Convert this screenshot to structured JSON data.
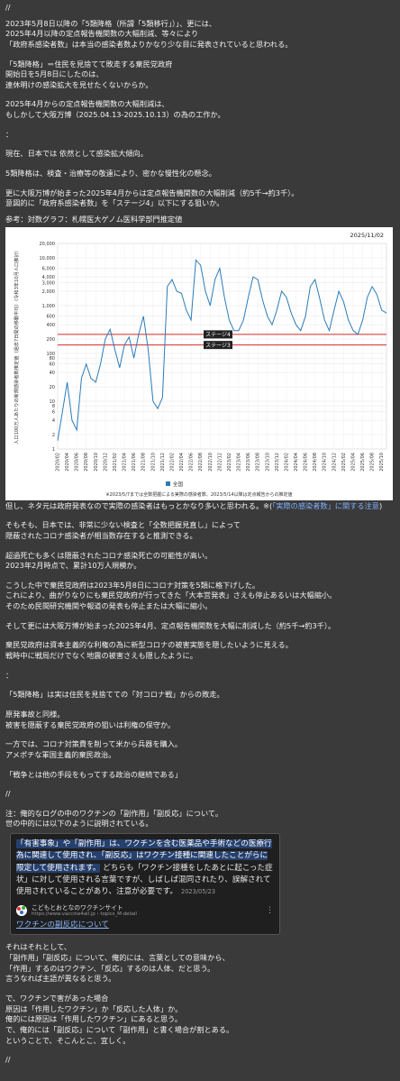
{
  "top": {
    "sep": "//",
    "para1": [
      "2023年5月8日以降の「5類降格（所謂「5類移行」）」、更には、",
      "2025年4月以降の定点報告機関数の大幅削減、等々により",
      "「政府系感染者数」は本当の感染者数よりかなり少な目に発表されていると思われる。"
    ],
    "para2": [
      "「5類降格」＝住民を見捨てて敗走する棄民党政府",
      "開始日を5月8日にしたのは、",
      "連休明けの感染拡大を見せたくないからか。"
    ],
    "para3": [
      "2025年4月からの定点報告機関数の大幅削減は、",
      "もしかして大阪万博（2025.04.13-2025.10.13）の為の工作か。"
    ],
    "colon1": "：",
    "para4": [
      "現在、日本では 依然として感染拡大傾向。"
    ],
    "para5": [
      "5類降格は、検査・治療等の敬遠により、密かな慢性化の懸念。"
    ],
    "para6": [
      "更に大阪万博が始まった2025年4月からは定点報告機関数の大幅削減（約5千→約3千）。",
      "意図的に「政府系感染者数」を「ステージ4」以下にする狙いか。"
    ],
    "ref": "参考：対数グラフ：札幌医大ゲノム医科学部門推定値"
  },
  "chart_data": {
    "type": "line",
    "title": "",
    "date_label": "2025/11/02",
    "ylabel": "人口100万人あたりの新規感染者数推定値（過去7日間の移動平均）（令和3年10月人口推計）",
    "xlabel": "",
    "yscale": "log",
    "ylim": [
      1,
      20000
    ],
    "yticks": [
      "1",
      "2",
      "4",
      "6",
      "8",
      "10",
      "20",
      "40",
      "60",
      "80",
      "100",
      "200",
      "400",
      "600",
      "1,000",
      "2,000",
      "3,000",
      "4,000",
      "6,000",
      "10,000",
      "20,000"
    ],
    "xticks": [
      "2020/02",
      "2020/04",
      "2020/06",
      "2020/08",
      "2020/10",
      "2020/12",
      "2021/02",
      "2021/04",
      "2021/06",
      "2021/08",
      "2021/10",
      "2021/12",
      "2022/02",
      "2022/04",
      "2022/06",
      "2022/08",
      "2022/10",
      "2022/12",
      "2023/02",
      "2023/04",
      "2023/06",
      "2023/08",
      "2023/10",
      "2023/12",
      "2024/02",
      "2024/04",
      "2024/06",
      "2024/08",
      "2024/10",
      "2024/12",
      "2025/02",
      "2025/04",
      "2025/06",
      "2025/08",
      "2025/10"
    ],
    "series": [
      {
        "name": "全国",
        "color": "#2b7bb9",
        "x": [
          "2020/02",
          "2020/03",
          "2020/04",
          "2020/05",
          "2020/06",
          "2020/07",
          "2020/08",
          "2020/09",
          "2020/10",
          "2020/11",
          "2020/12",
          "2021/01",
          "2021/02",
          "2021/03",
          "2021/04",
          "2021/05",
          "2021/06",
          "2021/07",
          "2021/08",
          "2021/09",
          "2021/10",
          "2021/11",
          "2021/12",
          "2022/01",
          "2022/02",
          "2022/03",
          "2022/04",
          "2022/05",
          "2022/06",
          "2022/07",
          "2022/08",
          "2022/09",
          "2022/10",
          "2022/11",
          "2022/12",
          "2023/01",
          "2023/02",
          "2023/03",
          "2023/04",
          "2023/05",
          "2023/06",
          "2023/07",
          "2023/08",
          "2023/09",
          "2023/10",
          "2023/11",
          "2023/12",
          "2024/01",
          "2024/02",
          "2024/03",
          "2024/04",
          "2024/05",
          "2024/06",
          "2024/07",
          "2024/08",
          "2024/09",
          "2024/10",
          "2024/11",
          "2024/12",
          "2025/01",
          "2025/02",
          "2025/03",
          "2025/04",
          "2025/05",
          "2025/06",
          "2025/07",
          "2025/08",
          "2025/09",
          "2025/10",
          "2025/11"
        ],
        "values": [
          1.5,
          6,
          25,
          4,
          2.5,
          30,
          60,
          30,
          25,
          60,
          200,
          320,
          120,
          50,
          150,
          220,
          80,
          250,
          600,
          120,
          10,
          7,
          12,
          2500,
          3500,
          2000,
          1800,
          800,
          500,
          9000,
          7000,
          2000,
          1000,
          3500,
          6000,
          1500,
          500,
          300,
          300,
          500,
          1500,
          4000,
          3500,
          1300,
          600,
          400,
          800,
          2000,
          1500,
          700,
          400,
          300,
          600,
          2500,
          3500,
          1400,
          500,
          300,
          800,
          2000,
          1200,
          500,
          300,
          250,
          500,
          1500,
          2500,
          1700,
          800,
          700
        ]
      }
    ],
    "hlines": [
      {
        "label": "ステージ4",
        "value": 250,
        "color": "#d62728"
      },
      {
        "label": "ステージ3",
        "value": 150,
        "color": "#d62728"
      }
    ],
    "legend": "全国",
    "legend_position": "bottom-left",
    "footnote": "※2023/5/7までは全数把握による実際の感染者数、2023/5/14以降は定点報告からの推定値",
    "grid": true
  },
  "mid": {
    "line1a": "但し、ネタ元は政府発表なので実際の感染者はもっとかなり多いと思われる。※(",
    "line1link": "「実際の感染者数」に関する注意",
    "line1b": ")",
    "para1": [
      "そもそも、日本では、非常に少ない検査と「全数把握見直し」によって",
      "隠蔽されたコロナ感染者が相当数存在すると推測できる。"
    ],
    "para2": [
      "超過死亡も多くは隠蔽されたコロナ感染死亡の可能性が高い。",
      "2023年2月時点で、累計10万人規模か。"
    ],
    "para3": [
      "こうした中で棄民党政府は2023年5月8日にコロナ対策を5類に格下げした。",
      "これにより、曲がりなりにも棄民党政府が行ってきた「大本営発表」さえも停止あるいは大幅縮小。",
      "そのため民間研究機関や報道の発表も停止または大幅に縮小。"
    ],
    "para4": [
      "そして更には大阪万博が始まった2025年4月、定点報告機関数を大幅に削減した（約5千→約3千）。"
    ],
    "para5": [
      "棄民党政府は資本主義的な利権の為に新型コロナの被害実態を隠したいように見える。",
      "戦時中に戦局だけでなく地震の被害さえも隠したように。"
    ],
    "colon2": "：",
    "para6": [
      "「5類降格」は実は住民を見捨てての「対コロナ戦」からの敗走。"
    ],
    "para7": [
      "原発事故と同様。",
      "被害を隠蔽する棄民党政府の狙いは利権の保守か。"
    ],
    "para8": [
      "一方では、コロナ対策費を削って米から兵器を購入。",
      "アメポチな軍国主義的棄民政治。"
    ],
    "para9": [
      "「戦争とは他の手段をもってする政治の継続である」"
    ],
    "sep2": "//",
    "para10": [
      "注：俺的なログの中のワクチンの「副作用」「副反応」について。",
      "世の中的には以下のように説明されている。"
    ]
  },
  "card": {
    "q_hl1": "「有害事象」や「副作用」は、ワクチンを含む医薬品や手術などの医療行為に関連して使用され、「副反応」はワクチン接種に関連したことがらに限定して使用されます。",
    "q_rest": " どちらも「ワクチン接種をしたあとに起こった症状」に対して使用される言葉ですが、しばしば混同されたり、誤解されて使用されていることがあり、注意が必要です。",
    "date": "2023/05/23",
    "site_name": "こどもとおとなのワクチンサイト",
    "site_url": "https://www.vaccine4all.jp › topics_M-detail",
    "more": "⋮",
    "link": "ワクチンの副反応について"
  },
  "bottom": {
    "para1": [
      "それはそれとして、",
      "「副作用」「副反応」について、俺的には、言葉としての意味から、",
      "「作用」するのはワクチン、「反応」するのは人体、だと思う。",
      "言うなれば主語が異なると思う。"
    ],
    "para2": [
      "で、ワクチンで害があった場合",
      "原因は「作用したワクチン」か「反応した人体」か。",
      "俺的には原因は「作用したワクチン」にあると思う。",
      "で、俺的には「副反応」について「副作用」と書く場合が割とある。",
      "ということで、そこんとこ、宜しく。"
    ],
    "sep3": "//"
  },
  "colors": {
    "background": "#3a3a3a",
    "text": "#f2f2f2",
    "link_red": "#ff5b5b",
    "chart_line": "#2b7bb9",
    "stage_line": "#d62728"
  }
}
